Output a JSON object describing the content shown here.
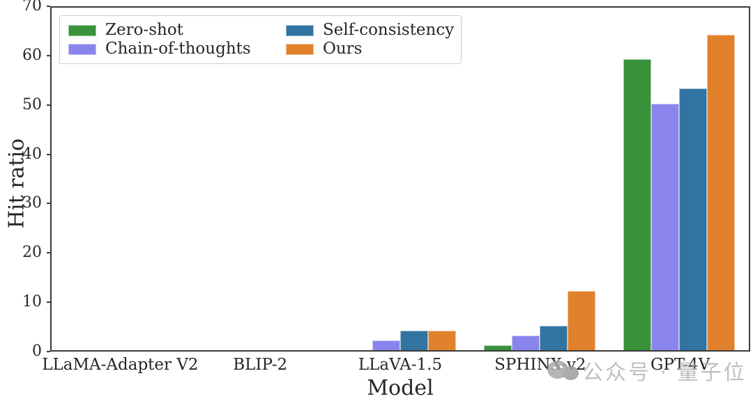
{
  "chart_data": {
    "type": "bar",
    "title": "",
    "xlabel": "Model",
    "ylabel": "Hit ratio",
    "ylim": [
      0,
      70
    ],
    "yticks": [
      0,
      10,
      20,
      30,
      40,
      50,
      60,
      70
    ],
    "grid": false,
    "legend_position": "upper-left",
    "categories": [
      "LLaMA-Adapter V2",
      "BLIP-2",
      "LLaVA-1.5",
      "SPHINX-v2",
      "GPT-4V"
    ],
    "series": [
      {
        "name": "Zero-shot",
        "color": "#3a923a",
        "values": [
          0,
          0,
          0,
          1,
          59
        ]
      },
      {
        "name": "Chain-of-thoughts",
        "color": "#8a85ed",
        "values": [
          0,
          0,
          2,
          3,
          50
        ]
      },
      {
        "name": "Self-consistency",
        "color": "#3274a1",
        "values": [
          0,
          0,
          4,
          5,
          53
        ]
      },
      {
        "name": "Ours",
        "color": "#e1812c",
        "values": [
          0,
          0,
          4,
          12,
          64
        ]
      }
    ]
  },
  "watermark": {
    "icon": "wechat-icon",
    "text": "公众号 · 量子位",
    "color": "#b5b5b5"
  }
}
